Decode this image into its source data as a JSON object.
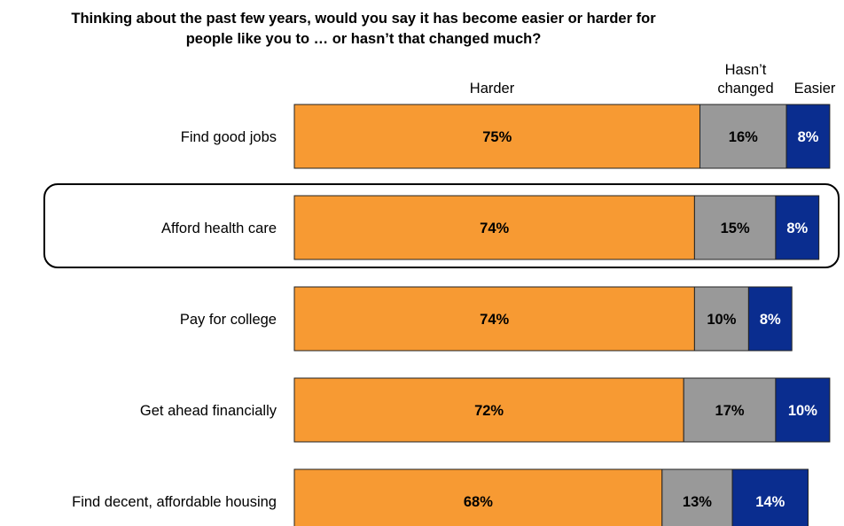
{
  "chart_data": {
    "type": "bar",
    "orientation": "horizontal",
    "stacked": true,
    "title": "Thinking about the past few years, would you say it has become easier or harder for people like you to … or hasn’t that changed much?",
    "categories": [
      "Find good jobs",
      "Afford health care",
      "Pay for college",
      "Get ahead financially",
      "Find decent, affordable housing"
    ],
    "series": [
      {
        "name": "Harder",
        "color": "#f79a33",
        "label_color": "#000000",
        "values": [
          75,
          74,
          74,
          72,
          68
        ]
      },
      {
        "name": "Hasn’t changed",
        "color": "#999999",
        "label_color": "#000000",
        "values": [
          16,
          15,
          10,
          17,
          13
        ]
      },
      {
        "name": "Easier",
        "color": "#0a2d8f",
        "label_color": "#ffffff",
        "values": [
          8,
          8,
          8,
          10,
          14
        ]
      }
    ],
    "value_suffix": "%",
    "highlighted_category": "Afford health care",
    "legend": "column headers above bars"
  },
  "headers": {
    "harder": "Harder",
    "unchanged_line1": "Hasn’t",
    "unchanged_line2": "changed",
    "easier": "Easier"
  }
}
